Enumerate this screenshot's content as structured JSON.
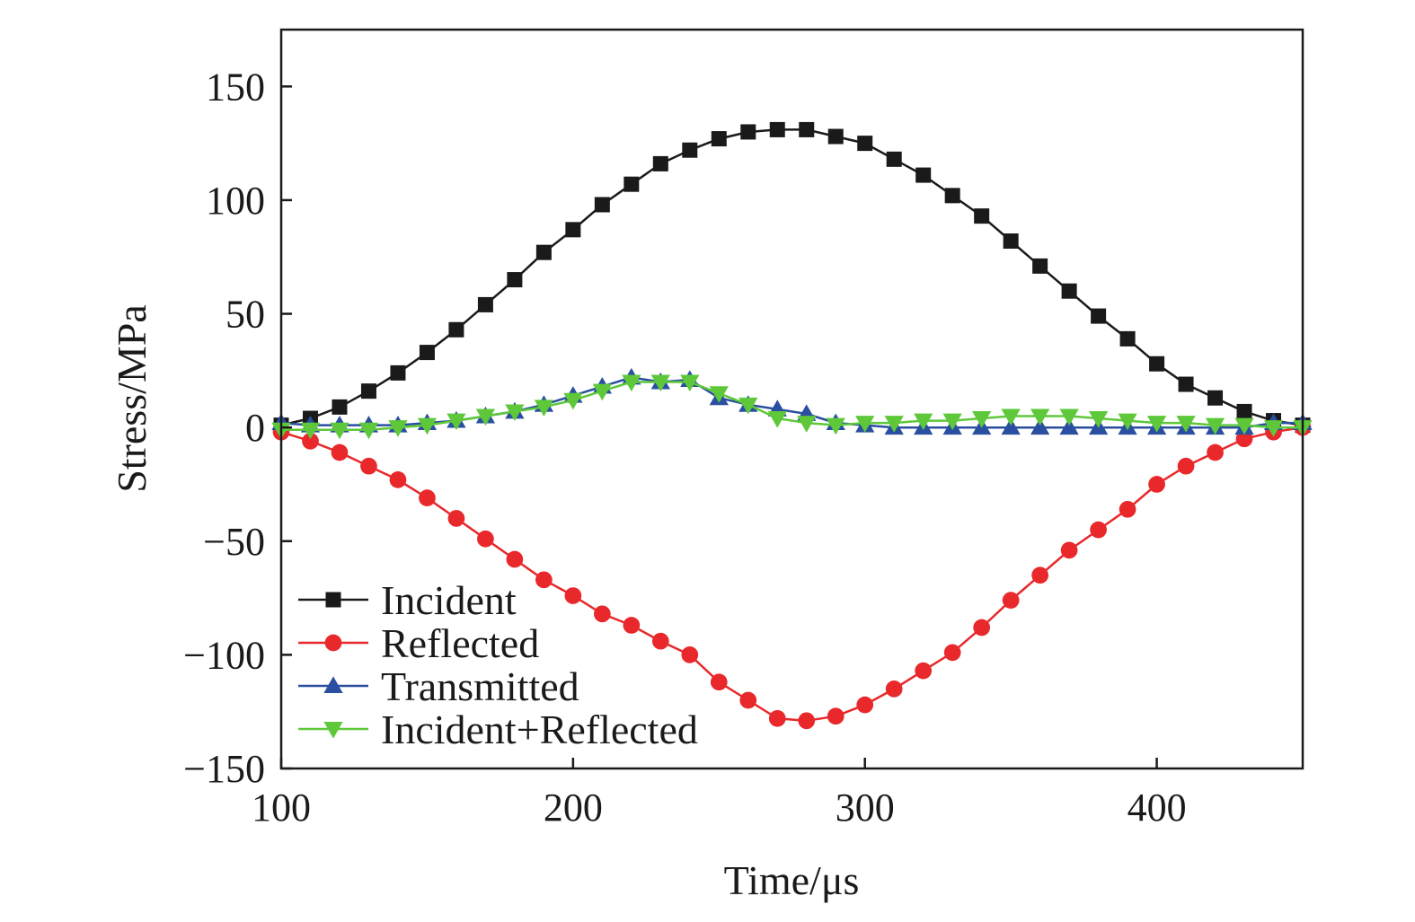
{
  "chart_data": {
    "type": "line",
    "xlabel": "Time/μs",
    "ylabel": "Stress/MPa",
    "xlim": [
      100,
      450
    ],
    "ylim": [
      -150,
      175
    ],
    "xticks": [
      100,
      200,
      300,
      400
    ],
    "yticks": [
      150,
      100,
      50,
      0,
      -50,
      -100,
      -150
    ],
    "ytick_labels": [
      "150",
      "100",
      "50",
      "0",
      "−50",
      "−100",
      "−150"
    ],
    "grid": false,
    "legend_position": "bottom-left",
    "series": [
      {
        "name": "Incident",
        "color": "#1a1a1a",
        "marker": "square",
        "x": [
          100,
          110,
          120,
          130,
          140,
          150,
          160,
          170,
          180,
          190,
          200,
          210,
          220,
          230,
          240,
          250,
          260,
          270,
          280,
          290,
          300,
          310,
          320,
          330,
          340,
          350,
          360,
          370,
          380,
          390,
          400,
          410,
          420,
          430,
          440,
          450
        ],
        "y": [
          1,
          4,
          9,
          16,
          24,
          33,
          43,
          54,
          65,
          77,
          87,
          98,
          107,
          116,
          122,
          127,
          130,
          131,
          131,
          128,
          125,
          118,
          111,
          102,
          93,
          82,
          71,
          60,
          49,
          39,
          28,
          19,
          13,
          7,
          3,
          1
        ]
      },
      {
        "name": "Reflected",
        "color": "#e8282b",
        "marker": "circle",
        "x": [
          100,
          110,
          120,
          130,
          140,
          150,
          160,
          170,
          180,
          190,
          200,
          210,
          220,
          230,
          240,
          250,
          260,
          270,
          280,
          290,
          300,
          310,
          320,
          330,
          340,
          350,
          360,
          370,
          380,
          390,
          400,
          410,
          420,
          430,
          440,
          450
        ],
        "y": [
          -2,
          -6,
          -11,
          -17,
          -23,
          -31,
          -40,
          -49,
          -58,
          -67,
          -74,
          -82,
          -87,
          -94,
          -100,
          -112,
          -120,
          -128,
          -129,
          -127,
          -122,
          -115,
          -107,
          -99,
          -88,
          -76,
          -65,
          -54,
          -45,
          -36,
          -25,
          -17,
          -11,
          -5,
          -2,
          0
        ]
      },
      {
        "name": "Transmitted",
        "color": "#2a4fa0",
        "marker": "triangle-up",
        "x": [
          100,
          110,
          120,
          130,
          140,
          150,
          160,
          170,
          180,
          190,
          200,
          210,
          220,
          230,
          240,
          250,
          260,
          270,
          280,
          290,
          300,
          310,
          320,
          330,
          340,
          350,
          360,
          370,
          380,
          390,
          400,
          410,
          420,
          430,
          440,
          450
        ],
        "y": [
          2,
          1,
          1,
          1,
          1,
          2,
          3,
          5,
          7,
          10,
          14,
          18,
          22,
          20,
          21,
          13,
          10,
          8,
          6,
          2,
          1,
          0,
          0,
          0,
          0,
          0,
          0,
          0,
          0,
          0,
          0,
          0,
          0,
          0,
          2,
          2
        ]
      },
      {
        "name": "Incident+Reflected",
        "color": "#5ec83a",
        "marker": "triangle-down",
        "x": [
          100,
          110,
          120,
          130,
          140,
          150,
          160,
          170,
          180,
          190,
          200,
          210,
          220,
          230,
          240,
          250,
          260,
          270,
          280,
          290,
          300,
          310,
          320,
          330,
          340,
          350,
          360,
          370,
          380,
          390,
          400,
          410,
          420,
          430,
          440,
          450
        ],
        "y": [
          -1,
          -1,
          -1,
          -1,
          0,
          1,
          3,
          5,
          7,
          9,
          12,
          16,
          20,
          20,
          20,
          15,
          10,
          4,
          2,
          1,
          2,
          2,
          3,
          3,
          4,
          5,
          5,
          5,
          4,
          3,
          2,
          2,
          1,
          1,
          0,
          0
        ]
      }
    ]
  }
}
